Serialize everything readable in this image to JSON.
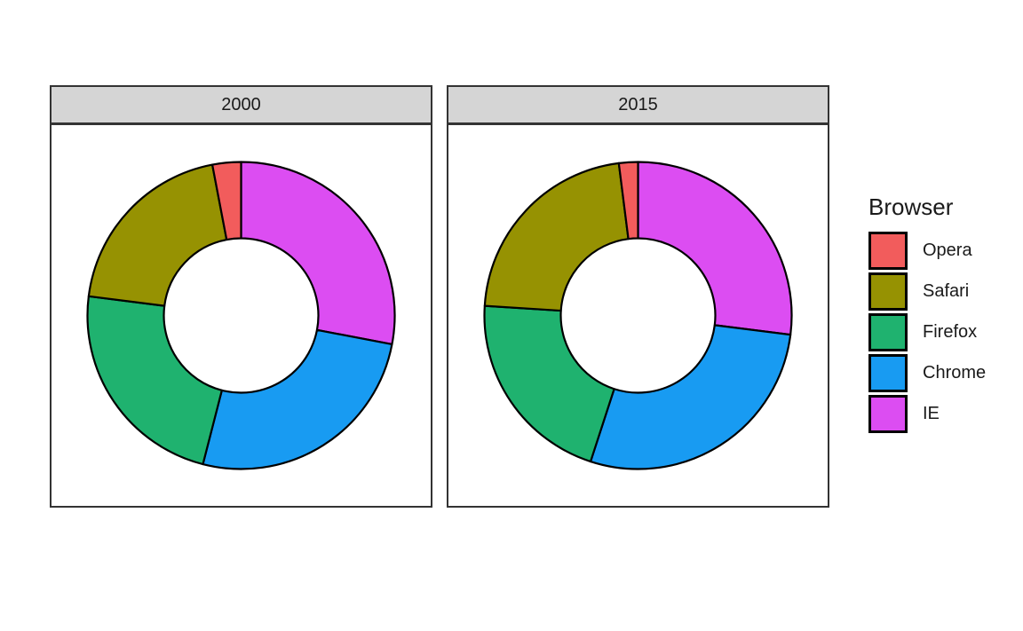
{
  "chart_data": {
    "type": "pie",
    "subtype": "donut",
    "title": "",
    "legend_title": "Browser",
    "legend_position": "right",
    "facet_variable": "year",
    "categories": [
      "Opera",
      "Safari",
      "Firefox",
      "Chrome",
      "IE"
    ],
    "colors": [
      "#F25C5C",
      "#969202",
      "#1FB26F",
      "#189BF2",
      "#DC4DF2"
    ],
    "series": [
      {
        "name": "2000",
        "values": [
          3,
          20,
          23,
          26,
          28
        ]
      },
      {
        "name": "2015",
        "values": [
          2,
          22,
          21,
          28,
          27
        ]
      }
    ],
    "units": "percent",
    "inner_radius_ratio": 0.5,
    "start_angle_deg": 0,
    "winding": "category order runs counterclockwise from 12 o'clock; reversed order (IE first) runs clockwise",
    "segment_stroke": "#000000",
    "strip_fill": "#D5D5D5",
    "strip_border": "#333333",
    "panel_border": "#333333",
    "background": "#FFFFFF"
  }
}
